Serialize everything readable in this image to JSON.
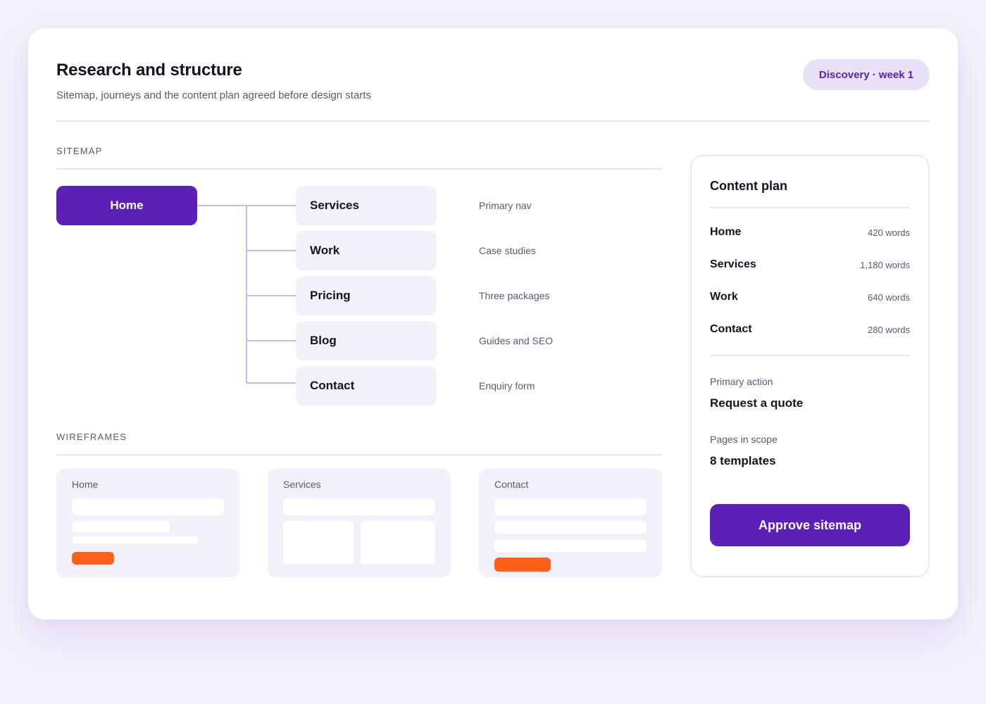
{
  "header": {
    "title": "Research and structure",
    "subtitle": "Sitemap, journeys and the content plan agreed before design starts",
    "badge": "Discovery · week 1"
  },
  "sitemap": {
    "section_label": "SITEMAP",
    "root": "Home",
    "children": [
      {
        "label": "Services",
        "note": "Primary nav"
      },
      {
        "label": "Work",
        "note": "Case studies"
      },
      {
        "label": "Pricing",
        "note": "Three packages"
      },
      {
        "label": "Blog",
        "note": "Guides and SEO"
      },
      {
        "label": "Contact",
        "note": "Enquiry form"
      }
    ]
  },
  "wireframes": {
    "section_label": "WIREFRAMES",
    "items": [
      {
        "label": "Home"
      },
      {
        "label": "Services"
      },
      {
        "label": "Contact"
      }
    ]
  },
  "content_plan": {
    "title": "Content plan",
    "rows": [
      {
        "page": "Home",
        "words": "420 words"
      },
      {
        "page": "Services",
        "words": "1,180 words"
      },
      {
        "page": "Work",
        "words": "640 words"
      },
      {
        "page": "Contact",
        "words": "280 words"
      }
    ],
    "primary_action_label": "Primary action",
    "primary_action_value": "Request a quote",
    "scope_label": "Pages in scope",
    "scope_value": "8 templates",
    "approve_label": "Approve sitemap"
  },
  "colors": {
    "accent": "#5b21b6",
    "accent_soft": "#e9e1f8",
    "node_bg": "#f3f0fa",
    "wireframe_cta": "#ff6119",
    "tree_line": "#c9b6e6",
    "page_bg": "#f4f1fb"
  }
}
